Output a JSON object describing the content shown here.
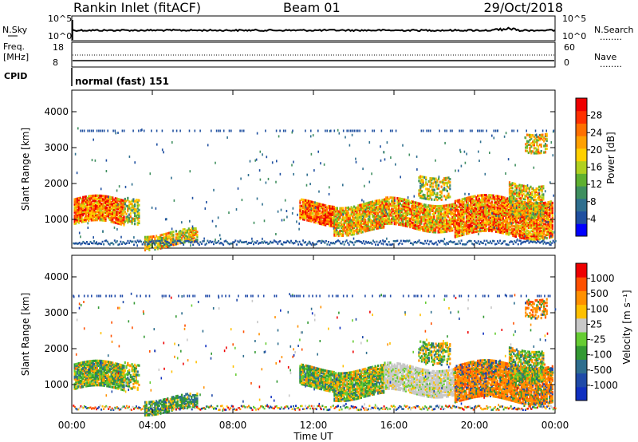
{
  "header": {
    "station": "Rankin Inlet (fitACF)",
    "beam": "Beam 01",
    "date": "29/Oct/2018"
  },
  "status_panels": {
    "nsky_label": "N.Sky",
    "nsearch_label": "N.Search",
    "freq_label": "Freq.",
    "freq_unit": "[MHz]",
    "nave_label": "Nave",
    "cpid_label": "CPID",
    "cpid_value": "normal (fast) 151",
    "noise_ticks_left": [
      "10^5",
      "10^0"
    ],
    "noise_ticks_right": [
      "10^5",
      "10^0"
    ],
    "freq_ticks": [
      "18",
      "8"
    ],
    "nave_ticks": [
      "60",
      "0"
    ],
    "legend_dots": "........"
  },
  "colors": {
    "power": [
      "#0000ff",
      "#1f4fa0",
      "#2f6f8f",
      "#3f8f5f",
      "#5fb030",
      "#b0d020",
      "#ffd000",
      "#ffa000",
      "#ff7000",
      "#ff3000",
      "#ee0000"
    ],
    "velocity": [
      "#ee0000",
      "#ff5000",
      "#ff9000",
      "#ffc000",
      "#c8c8c8",
      "#66cc33",
      "#339933",
      "#2e6e8e",
      "#1f4aa8",
      "#1030c0"
    ]
  },
  "chart_data": [
    {
      "type": "heatmap",
      "panel": "power",
      "ylabel": "Slant Range [km]",
      "yticks": [
        "1000",
        "2000",
        "3000",
        "4000"
      ],
      "ylim": [
        200,
        4600
      ],
      "xlim": [
        0,
        24
      ],
      "colorbar_label": "Power [dB]",
      "colorbar_ticks": [
        "4",
        "8",
        "12",
        "16",
        "20",
        "24",
        "28"
      ],
      "colorbar_range": [
        0,
        30
      ]
    },
    {
      "type": "heatmap",
      "panel": "velocity",
      "ylabel": "Slant Range [km]",
      "yticks": [
        "1000",
        "2000",
        "3000",
        "4000"
      ],
      "ylim": [
        200,
        4600
      ],
      "xlim": [
        0,
        24
      ],
      "xticks": [
        "00:00",
        "04:00",
        "08:00",
        "12:00",
        "16:00",
        "20:00",
        "00:00"
      ],
      "xlabel": "Time UT",
      "colorbar_label": "Velocity [m s⁻¹]",
      "colorbar_ticks": [
        "1000",
        "500",
        "100",
        "25",
        "-25",
        "-100",
        "-500",
        "-1000"
      ]
    }
  ]
}
